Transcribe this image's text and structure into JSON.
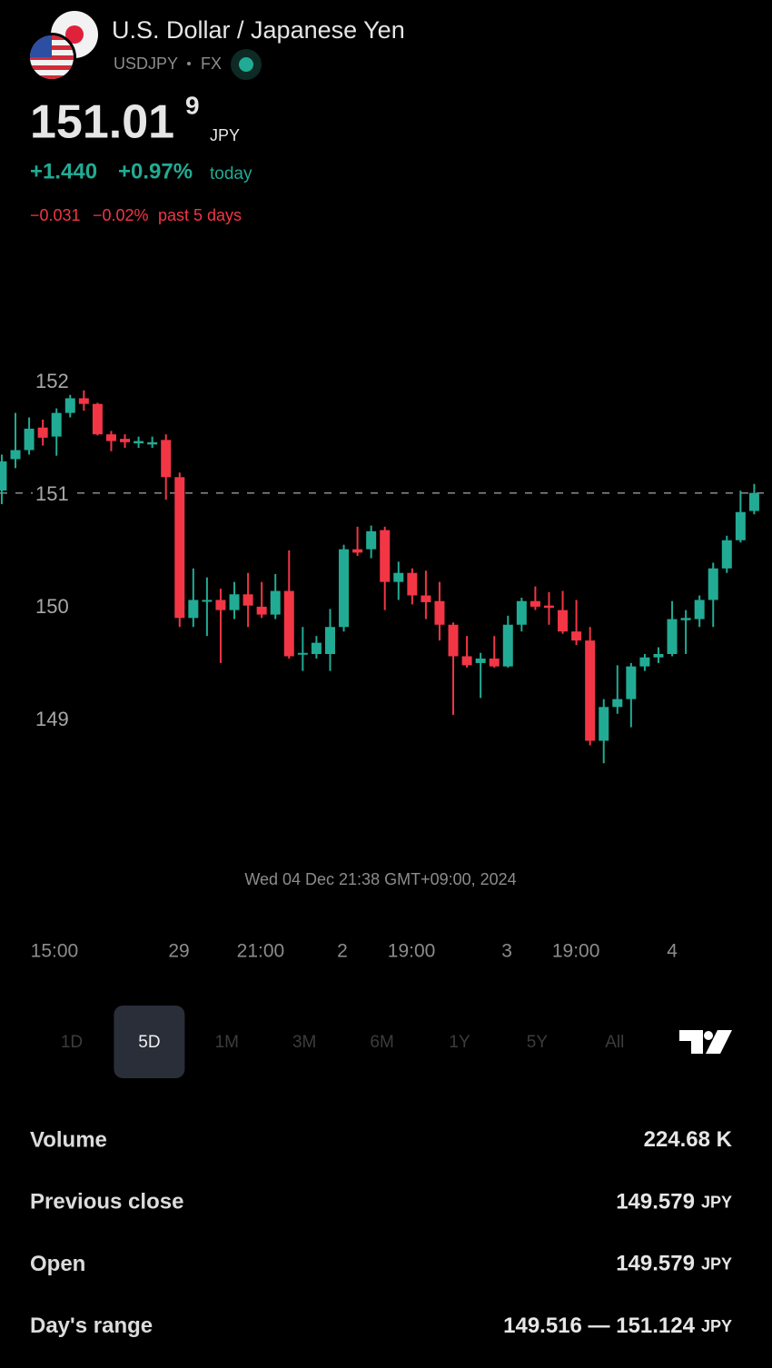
{
  "header": {
    "title": "U.S. Dollar / Japanese Yen",
    "symbol": "USDJPY",
    "exchange": "FX",
    "price": "151.01",
    "price_last_digit": "9",
    "currency": "JPY",
    "change_today": "+1.440",
    "change_today_pct": "+0.97%",
    "today_label": "today",
    "change_5d": "−0.031",
    "change_5d_pct": "−0.02%",
    "period_label": "past 5 days"
  },
  "chart_data": {
    "type": "candlestick",
    "up_color": "#22ab94",
    "down_color": "#f23645",
    "open": [
      151.04,
      151.32,
      151.4,
      151.6,
      151.52,
      151.73,
      151.86,
      151.81,
      151.54,
      151.5,
      151.46,
      151.45,
      151.49,
      151.16,
      149.91,
      150.06,
      150.07,
      149.98,
      150.12,
      150.01,
      149.94,
      150.15,
      149.59,
      149.59,
      149.59,
      149.83,
      150.52,
      150.52,
      150.69,
      150.23,
      150.31,
      150.11,
      150.06,
      149.85,
      149.57,
      149.51,
      149.55,
      149.48,
      149.85,
      150.06,
      150.02,
      149.98,
      149.79,
      149.71,
      148.82,
      149.12,
      149.19,
      149.48,
      149.56,
      149.59,
      149.89,
      149.9,
      150.07,
      150.35,
      150.6,
      150.86
    ],
    "high": [
      151.36,
      151.73,
      151.69,
      151.67,
      151.77,
      151.89,
      151.93,
      151.82,
      151.57,
      151.54,
      151.52,
      151.52,
      151.54,
      151.2,
      150.35,
      150.27,
      150.17,
      150.23,
      150.31,
      150.23,
      150.3,
      150.51,
      149.83,
      149.75,
      149.99,
      150.56,
      150.72,
      150.73,
      150.72,
      150.41,
      150.35,
      150.33,
      150.23,
      149.87,
      149.75,
      149.6,
      149.75,
      149.93,
      150.09,
      150.19,
      150.14,
      150.15,
      150.07,
      149.83,
      149.19,
      149.49,
      149.51,
      149.59,
      149.65,
      150.06,
      149.98,
      150.11,
      150.4,
      150.64,
      151.04,
      151.1
    ],
    "low": [
      150.92,
      151.24,
      151.36,
      151.44,
      151.35,
      151.69,
      151.75,
      151.53,
      151.39,
      151.42,
      151.42,
      151.42,
      150.96,
      149.83,
      149.83,
      149.75,
      149.51,
      149.9,
      149.83,
      149.91,
      149.9,
      149.55,
      149.44,
      149.55,
      149.44,
      149.79,
      150.46,
      150.44,
      149.98,
      150.07,
      150.03,
      149.9,
      149.71,
      149.05,
      149.47,
      149.2,
      149.47,
      149.47,
      149.79,
      149.98,
      149.85,
      149.77,
      149.67,
      148.78,
      148.62,
      149.06,
      148.94,
      149.44,
      149.51,
      149.57,
      149.59,
      149.83,
      149.83,
      150.31,
      150.58,
      150.83
    ],
    "close": [
      151.3,
      151.4,
      151.59,
      151.51,
      151.73,
      151.86,
      151.81,
      151.54,
      151.48,
      151.47,
      151.48,
      151.47,
      151.16,
      149.91,
      150.07,
      150.07,
      149.98,
      150.12,
      150.02,
      149.94,
      150.15,
      149.57,
      149.6,
      149.69,
      149.83,
      150.52,
      150.49,
      150.68,
      150.23,
      150.31,
      150.11,
      150.05,
      149.85,
      149.57,
      149.49,
      149.55,
      149.48,
      149.85,
      150.06,
      150.01,
      150.0,
      149.79,
      149.71,
      148.82,
      149.12,
      149.19,
      149.48,
      149.56,
      149.59,
      149.9,
      149.91,
      150.07,
      150.35,
      150.6,
      150.85,
      151.02
    ],
    "price_line": 151.019,
    "ylim": [
      148.3,
      152.17
    ],
    "yticks": [
      149,
      150,
      151,
      152
    ],
    "xlim": [
      -0.13,
      56.3
    ],
    "xticks": [
      {
        "value": 3.85,
        "label": "15:00"
      },
      {
        "value": 12.95,
        "label": "29"
      },
      {
        "value": 18.92,
        "label": "21:00"
      },
      {
        "value": 24.9,
        "label": "2"
      },
      {
        "value": 29.95,
        "label": "19:00"
      },
      {
        "value": 36.92,
        "label": "3"
      },
      {
        "value": 41.97,
        "label": "19:00"
      },
      {
        "value": 49.0,
        "label": "4"
      }
    ],
    "crosshair_label": "Wed 04 Dec 21:38 GMT+09:00, 2024"
  },
  "ranges": [
    "1D",
    "5D",
    "1M",
    "3M",
    "6M",
    "1Y",
    "5Y",
    "All"
  ],
  "selected_range": 1,
  "stats": [
    {
      "label": "Volume",
      "value": "224.68 K"
    },
    {
      "label": "Previous close",
      "value": "149.579",
      "unit": "JPY"
    },
    {
      "label": "Open",
      "value": "149.579",
      "unit": "JPY"
    },
    {
      "label": "Day's range",
      "value": "149.516 — 151.124",
      "unit": "JPY"
    }
  ]
}
